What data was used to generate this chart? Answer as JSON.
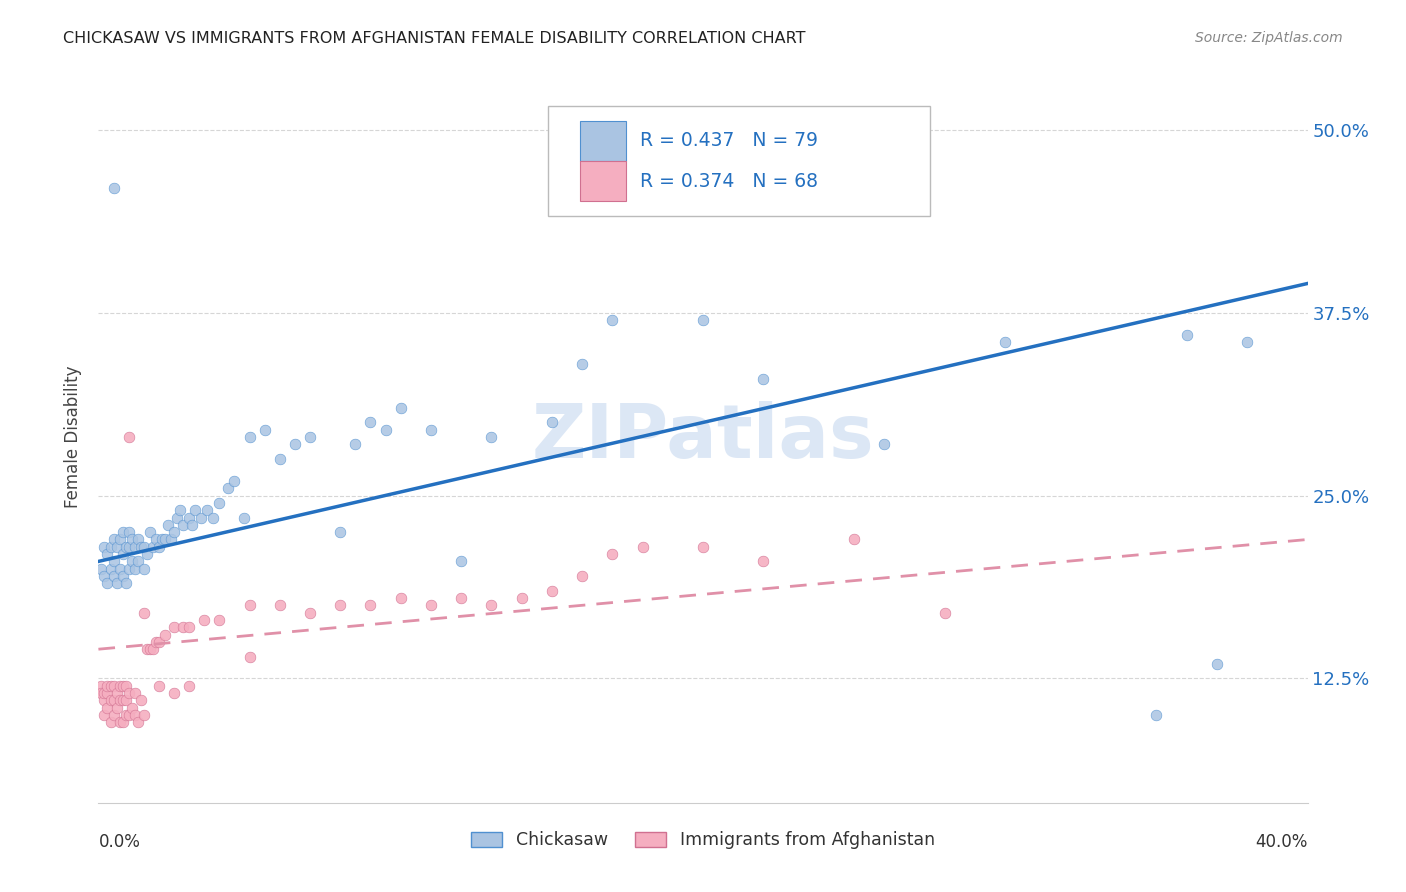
{
  "title": "CHICKASAW VS IMMIGRANTS FROM AFGHANISTAN FEMALE DISABILITY CORRELATION CHART",
  "source": "Source: ZipAtlas.com",
  "ylabel": "Female Disability",
  "yticks": [
    0.125,
    0.25,
    0.375,
    0.5
  ],
  "ytick_labels": [
    "12.5%",
    "25.0%",
    "37.5%",
    "50.0%"
  ],
  "xlim": [
    0.0,
    0.4
  ],
  "ylim": [
    0.04,
    0.54
  ],
  "chickasaw_color": "#aac4e2",
  "afghanistan_color": "#f5aec0",
  "chickasaw_line_color": "#2470c0",
  "afghanistan_line_color": "#e090a8",
  "R_chickasaw": 0.437,
  "N_chickasaw": 79,
  "R_afghanistan": 0.374,
  "N_afghanistan": 68,
  "watermark": "ZIPatlas",
  "chickasaw_x": [
    0.001,
    0.002,
    0.002,
    0.003,
    0.003,
    0.004,
    0.004,
    0.005,
    0.005,
    0.005,
    0.006,
    0.006,
    0.007,
    0.007,
    0.008,
    0.008,
    0.008,
    0.009,
    0.009,
    0.01,
    0.01,
    0.01,
    0.011,
    0.011,
    0.012,
    0.012,
    0.013,
    0.013,
    0.014,
    0.015,
    0.015,
    0.016,
    0.017,
    0.018,
    0.019,
    0.02,
    0.021,
    0.022,
    0.023,
    0.024,
    0.025,
    0.026,
    0.027,
    0.028,
    0.03,
    0.031,
    0.032,
    0.034,
    0.036,
    0.038,
    0.04,
    0.043,
    0.045,
    0.048,
    0.05,
    0.055,
    0.06,
    0.065,
    0.07,
    0.08,
    0.085,
    0.09,
    0.095,
    0.1,
    0.11,
    0.12,
    0.13,
    0.15,
    0.16,
    0.17,
    0.2,
    0.22,
    0.26,
    0.3,
    0.36,
    0.37,
    0.38,
    0.005,
    0.35
  ],
  "chickasaw_y": [
    0.2,
    0.195,
    0.215,
    0.19,
    0.21,
    0.2,
    0.215,
    0.195,
    0.205,
    0.22,
    0.19,
    0.215,
    0.2,
    0.22,
    0.195,
    0.21,
    0.225,
    0.19,
    0.215,
    0.2,
    0.215,
    0.225,
    0.205,
    0.22,
    0.2,
    0.215,
    0.205,
    0.22,
    0.215,
    0.2,
    0.215,
    0.21,
    0.225,
    0.215,
    0.22,
    0.215,
    0.22,
    0.22,
    0.23,
    0.22,
    0.225,
    0.235,
    0.24,
    0.23,
    0.235,
    0.23,
    0.24,
    0.235,
    0.24,
    0.235,
    0.245,
    0.255,
    0.26,
    0.235,
    0.29,
    0.295,
    0.275,
    0.285,
    0.29,
    0.225,
    0.285,
    0.3,
    0.295,
    0.31,
    0.295,
    0.205,
    0.29,
    0.3,
    0.34,
    0.37,
    0.37,
    0.33,
    0.285,
    0.355,
    0.36,
    0.135,
    0.355,
    0.46,
    0.1
  ],
  "afghanistan_x": [
    0.001,
    0.001,
    0.002,
    0.002,
    0.002,
    0.003,
    0.003,
    0.003,
    0.004,
    0.004,
    0.004,
    0.005,
    0.005,
    0.005,
    0.006,
    0.006,
    0.007,
    0.007,
    0.007,
    0.008,
    0.008,
    0.008,
    0.009,
    0.009,
    0.009,
    0.01,
    0.01,
    0.011,
    0.012,
    0.012,
    0.013,
    0.014,
    0.015,
    0.016,
    0.017,
    0.018,
    0.019,
    0.02,
    0.022,
    0.025,
    0.028,
    0.03,
    0.035,
    0.04,
    0.05,
    0.06,
    0.07,
    0.08,
    0.09,
    0.1,
    0.11,
    0.12,
    0.13,
    0.14,
    0.15,
    0.16,
    0.17,
    0.18,
    0.01,
    0.015,
    0.02,
    0.025,
    0.03,
    0.05,
    0.2,
    0.22,
    0.25,
    0.28
  ],
  "afghanistan_y": [
    0.12,
    0.115,
    0.1,
    0.11,
    0.115,
    0.105,
    0.115,
    0.12,
    0.095,
    0.11,
    0.12,
    0.1,
    0.11,
    0.12,
    0.105,
    0.115,
    0.095,
    0.11,
    0.12,
    0.095,
    0.11,
    0.12,
    0.1,
    0.11,
    0.12,
    0.1,
    0.115,
    0.105,
    0.1,
    0.115,
    0.095,
    0.11,
    0.1,
    0.145,
    0.145,
    0.145,
    0.15,
    0.15,
    0.155,
    0.16,
    0.16,
    0.16,
    0.165,
    0.165,
    0.175,
    0.175,
    0.17,
    0.175,
    0.175,
    0.18,
    0.175,
    0.18,
    0.175,
    0.18,
    0.185,
    0.195,
    0.21,
    0.215,
    0.29,
    0.17,
    0.12,
    0.115,
    0.12,
    0.14,
    0.215,
    0.205,
    0.22,
    0.17
  ],
  "blue_line": [
    0.0,
    0.4,
    0.205,
    0.395
  ],
  "pink_line": [
    0.0,
    0.4,
    0.145,
    0.22
  ]
}
